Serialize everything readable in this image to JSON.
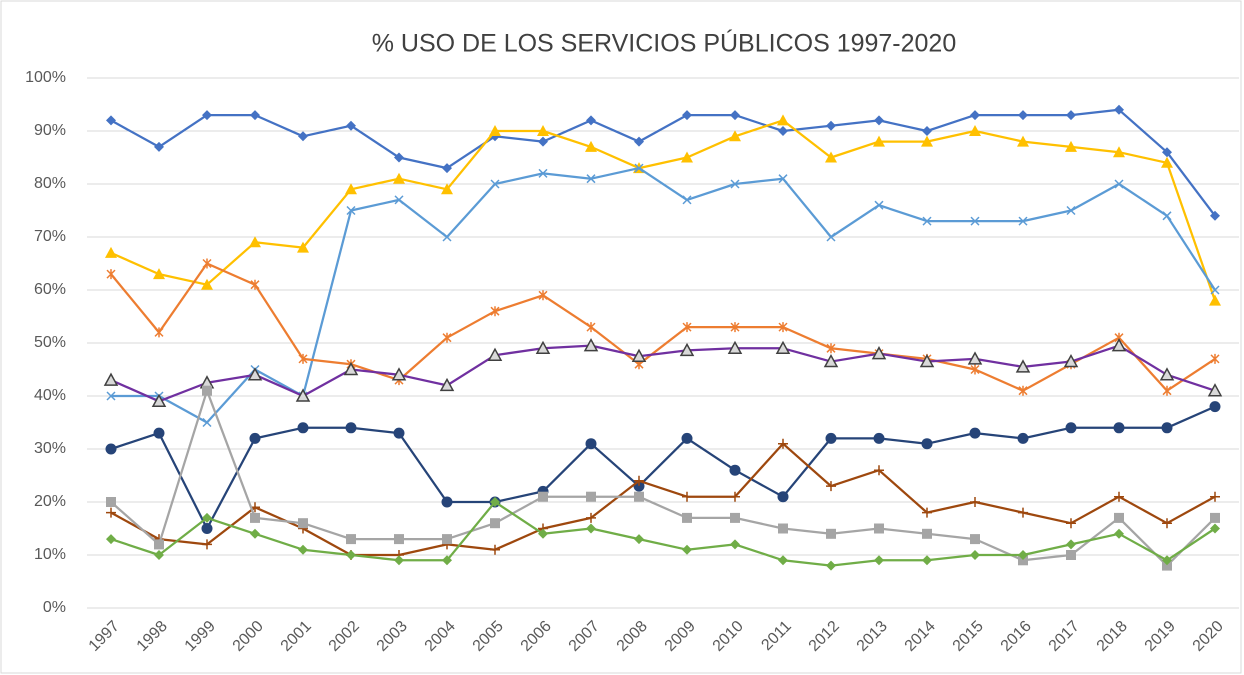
{
  "chart_data": {
    "type": "line",
    "title": "% USO DE LOS SERVICIOS PÚBLICOS 1997-2020",
    "categories": [
      "1997",
      "1998",
      "1999",
      "2000",
      "2001",
      "2002",
      "2003",
      "2004",
      "2005",
      "2006",
      "2007",
      "2008",
      "2009",
      "2010",
      "2011",
      "2012",
      "2013",
      "2014",
      "2015",
      "2016",
      "2017",
      "2018",
      "2019",
      "2020"
    ],
    "ylim": [
      0,
      100
    ],
    "yticks": [
      {
        "value": 0,
        "label": "0%"
      },
      {
        "value": 10,
        "label": "10%"
      },
      {
        "value": 20,
        "label": "20%"
      },
      {
        "value": 30,
        "label": "30%"
      },
      {
        "value": 40,
        "label": "40%"
      },
      {
        "value": 50,
        "label": "50%"
      },
      {
        "value": 60,
        "label": "60%"
      },
      {
        "value": 70,
        "label": "70%"
      },
      {
        "value": 80,
        "label": "80%"
      },
      {
        "value": 90,
        "label": "90%"
      },
      {
        "value": 100,
        "label": "100%"
      }
    ],
    "grid": true,
    "series": [
      {
        "color": "#4472c4",
        "marker": "diamond",
        "values": [
          92,
          87,
          93,
          93,
          89,
          91,
          85,
          83,
          89,
          88,
          92,
          88,
          93,
          93,
          90,
          91,
          92,
          90,
          93,
          93,
          93,
          94,
          86,
          74
        ]
      },
      {
        "color": "#ffc000",
        "marker": "triangle",
        "values": [
          67,
          63,
          61,
          69,
          68,
          79,
          81,
          79,
          90,
          90,
          87,
          83,
          85,
          89,
          92,
          85,
          88,
          88,
          90,
          88,
          87,
          86,
          84,
          58
        ]
      },
      {
        "color": "#5b9bd5",
        "marker": "x",
        "values": [
          40,
          40,
          35,
          45,
          40,
          75,
          77,
          70,
          80,
          82,
          81,
          83,
          77,
          80,
          81,
          70,
          76,
          73,
          73,
          73,
          75,
          80,
          74,
          60
        ]
      },
      {
        "color": "#ed7d31",
        "marker": "star",
        "values": [
          63,
          52,
          65,
          61,
          47,
          46,
          43,
          51,
          56,
          59,
          53,
          46,
          53,
          53,
          53,
          49,
          48,
          47,
          45,
          41,
          46,
          51,
          41,
          47
        ]
      },
      {
        "color": "#7030a0",
        "marker": "open-triangle",
        "values": [
          43,
          39,
          42.5,
          44,
          40,
          45,
          44,
          42,
          47.7,
          49,
          49.5,
          47.5,
          48.6,
          49,
          49,
          46.5,
          48,
          46.5,
          47,
          45.5,
          46.5,
          49.5,
          44,
          41
        ]
      },
      {
        "color": "#264478",
        "marker": "circle",
        "values": [
          30,
          33,
          15,
          32,
          34,
          34,
          33,
          20,
          20,
          22,
          31,
          23,
          32,
          26,
          21,
          32,
          32,
          31,
          33,
          32,
          34,
          34,
          34,
          38
        ]
      },
      {
        "color": "#9e480e",
        "marker": "plus",
        "values": [
          18,
          13,
          12,
          19,
          15,
          10,
          10,
          12,
          11,
          15,
          17,
          24,
          21,
          21,
          31,
          23,
          26,
          18,
          20,
          18,
          16,
          21,
          16,
          21
        ]
      },
      {
        "color": "#a5a5a5",
        "marker": "square",
        "values": [
          20,
          12,
          41,
          17,
          16,
          13,
          13,
          13,
          16,
          21,
          21,
          21,
          17,
          17,
          15,
          14,
          15,
          14,
          13,
          9,
          10,
          17,
          8,
          17
        ]
      },
      {
        "color": "#70ad47",
        "marker": "diamond",
        "values": [
          13,
          10,
          17,
          14,
          11,
          10,
          9,
          9,
          20,
          14,
          15,
          13,
          11,
          12,
          9,
          8,
          9,
          9,
          10,
          10,
          12,
          14,
          9,
          15
        ]
      }
    ]
  }
}
